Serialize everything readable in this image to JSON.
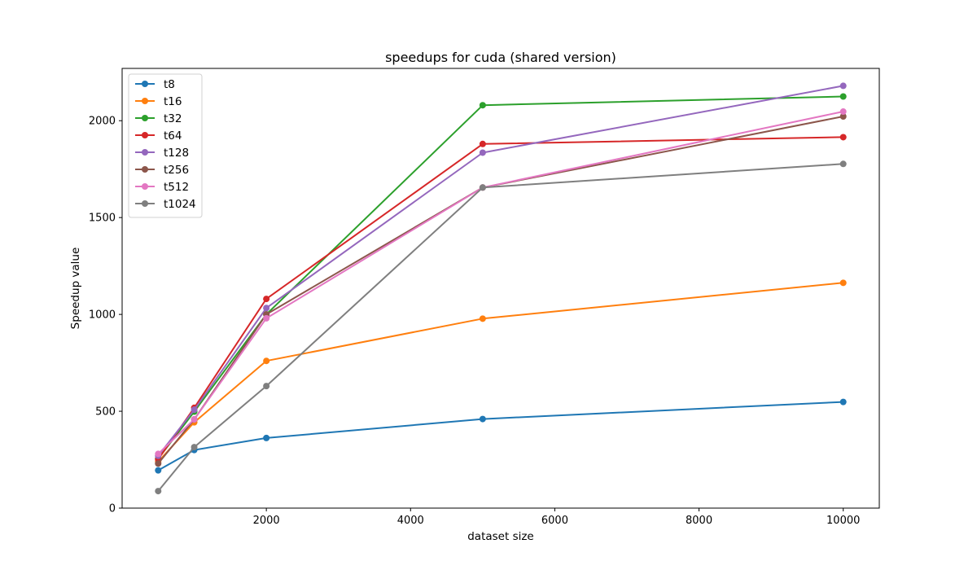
{
  "chart_data": {
    "type": "line",
    "title": "speedups for cuda (shared version)",
    "xlabel": "dataset size",
    "ylabel": "Speedup value",
    "x": [
      500,
      1000,
      2000,
      5000,
      10000
    ],
    "xlim": [
      0,
      10500
    ],
    "ylim": [
      0,
      2270
    ],
    "xticks": [
      2000,
      4000,
      6000,
      8000,
      10000
    ],
    "yticks": [
      0,
      500,
      1000,
      1500,
      2000
    ],
    "grid": false,
    "legend_position": "top-left",
    "series": [
      {
        "name": "t8",
        "color": "#1f77b4",
        "values": [
          195,
          300,
          362,
          460,
          548
        ]
      },
      {
        "name": "t16",
        "color": "#ff7f0e",
        "values": [
          240,
          443,
          760,
          978,
          1163
        ]
      },
      {
        "name": "t32",
        "color": "#2ca02c",
        "values": [
          255,
          498,
          1000,
          2080,
          2125
        ]
      },
      {
        "name": "t64",
        "color": "#d62728",
        "values": [
          252,
          518,
          1080,
          1880,
          1915
        ]
      },
      {
        "name": "t128",
        "color": "#9467bd",
        "values": [
          270,
          508,
          1033,
          1835,
          2180
        ]
      },
      {
        "name": "t256",
        "color": "#8c564b",
        "values": [
          230,
          458,
          1000,
          1655,
          2022
        ]
      },
      {
        "name": "t512",
        "color": "#e377c2",
        "values": [
          280,
          458,
          980,
          1655,
          2047
        ]
      },
      {
        "name": "t1024",
        "color": "#7f7f7f",
        "values": [
          88,
          315,
          630,
          1655,
          1777
        ]
      }
    ]
  }
}
